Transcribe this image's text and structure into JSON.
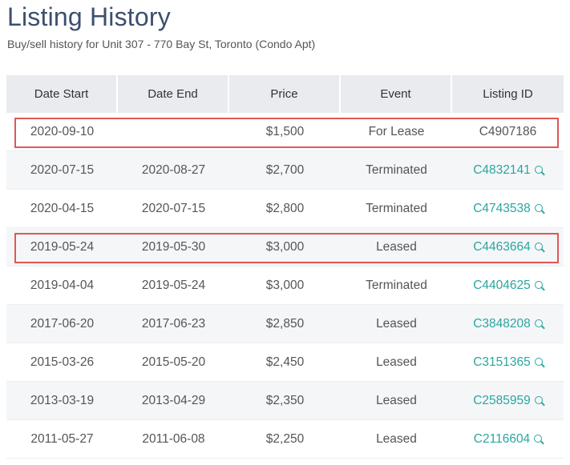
{
  "page": {
    "title": "Listing History",
    "subtitle": "Buy/sell history for Unit 307 - 770 Bay St, Toronto (Condo Apt)"
  },
  "table": {
    "headers": [
      "Date Start",
      "Date End",
      "Price",
      "Event",
      "Listing ID"
    ],
    "rows": [
      {
        "start": "2020-09-10",
        "end": "",
        "price": "$1,500",
        "event": "For Lease",
        "id": "C4907186",
        "link": false,
        "highlighted": true
      },
      {
        "start": "2020-07-15",
        "end": "2020-08-27",
        "price": "$2,700",
        "event": "Terminated",
        "id": "C4832141",
        "link": true,
        "highlighted": false
      },
      {
        "start": "2020-04-15",
        "end": "2020-07-15",
        "price": "$2,800",
        "event": "Terminated",
        "id": "C4743538",
        "link": true,
        "highlighted": false
      },
      {
        "start": "2019-05-24",
        "end": "2019-05-30",
        "price": "$3,000",
        "event": "Leased",
        "id": "C4463664",
        "link": true,
        "highlighted": true
      },
      {
        "start": "2019-04-04",
        "end": "2019-05-24",
        "price": "$3,000",
        "event": "Terminated",
        "id": "C4404625",
        "link": true,
        "highlighted": false
      },
      {
        "start": "2017-06-20",
        "end": "2017-06-23",
        "price": "$2,850",
        "event": "Leased",
        "id": "C3848208",
        "link": true,
        "highlighted": false
      },
      {
        "start": "2015-03-26",
        "end": "2015-05-20",
        "price": "$2,450",
        "event": "Leased",
        "id": "C3151365",
        "link": true,
        "highlighted": false
      },
      {
        "start": "2013-03-19",
        "end": "2013-04-29",
        "price": "$2,350",
        "event": "Leased",
        "id": "C2585959",
        "link": true,
        "highlighted": false
      },
      {
        "start": "2011-05-27",
        "end": "2011-06-08",
        "price": "$2,250",
        "event": "Leased",
        "id": "C2116604",
        "link": true,
        "highlighted": false
      }
    ]
  },
  "colors": {
    "title": "#3d4f6e",
    "link": "#2aa6a0",
    "header_bg": "#e9ebee",
    "shaded_row": "#f5f6f8",
    "highlight_border": "#e05757"
  },
  "icons": {
    "listing_link": "search-icon"
  }
}
